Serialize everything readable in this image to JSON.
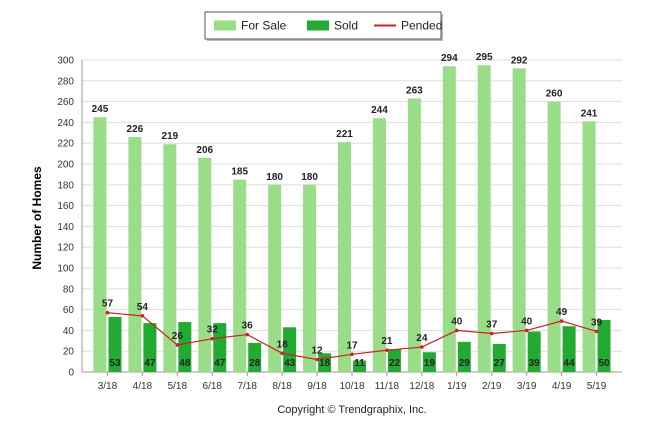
{
  "chart_data": {
    "type": "bar",
    "categories": [
      "3/18",
      "4/18",
      "5/18",
      "6/18",
      "7/18",
      "8/18",
      "9/18",
      "10/18",
      "11/18",
      "12/18",
      "1/19",
      "2/19",
      "3/19",
      "4/19",
      "5/19"
    ],
    "series": [
      {
        "name": "For Sale",
        "type": "bar",
        "color": "#99dd88",
        "values": [
          245,
          226,
          219,
          206,
          185,
          180,
          180,
          221,
          244,
          263,
          294,
          295,
          292,
          260,
          241
        ]
      },
      {
        "name": "Sold",
        "type": "bar",
        "color": "#22aa33",
        "values": [
          53,
          47,
          48,
          47,
          28,
          43,
          18,
          11,
          22,
          19,
          29,
          27,
          39,
          44,
          50
        ]
      },
      {
        "name": "Pended",
        "type": "line",
        "color": "#cc2222",
        "values": [
          57,
          54,
          26,
          32,
          36,
          18,
          12,
          17,
          21,
          24,
          40,
          37,
          40,
          49,
          39
        ]
      }
    ],
    "ylabel": "Number of Homes",
    "ylim": [
      0,
      300
    ],
    "yticks": [
      0,
      20,
      40,
      60,
      80,
      100,
      120,
      140,
      160,
      180,
      200,
      220,
      240,
      260,
      280,
      300
    ],
    "grid": true,
    "legend_position": "top-center",
    "copyright": "Copyright © Trendgraphix, Inc."
  }
}
